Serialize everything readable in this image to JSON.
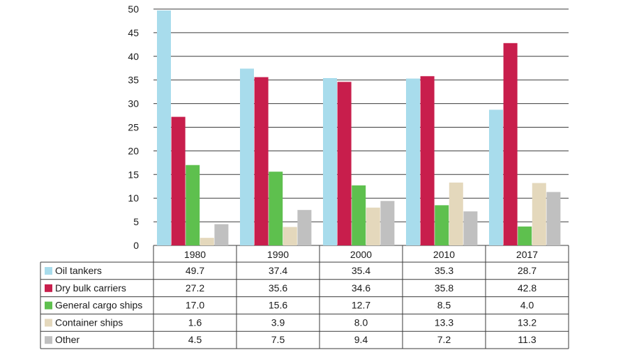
{
  "chart_data": {
    "type": "bar",
    "categories": [
      "1980",
      "1990",
      "2000",
      "2010",
      "2017"
    ],
    "series": [
      {
        "name": "Oil tankers",
        "color": "#a8dcec",
        "values": [
          "49.7",
          "37.4",
          "35.4",
          "35.3",
          "28.7"
        ]
      },
      {
        "name": "Dry bulk carriers",
        "color": "#c81e4c",
        "values": [
          "27.2",
          "35.6",
          "34.6",
          "35.8",
          "42.8"
        ]
      },
      {
        "name": "General cargo ships",
        "color": "#5ec04e",
        "values": [
          "17.0",
          "15.6",
          "12.7",
          "8.5",
          "4.0"
        ]
      },
      {
        "name": "Container ships",
        "color": "#e4d8bc",
        "values": [
          "1.6",
          "3.9",
          "8.0",
          "13.3",
          "13.2"
        ]
      },
      {
        "name": "Other",
        "color": "#c0c0c0",
        "values": [
          "4.5",
          "7.5",
          "9.4",
          "7.2",
          "11.3"
        ]
      }
    ],
    "ylim": [
      0,
      50
    ],
    "yticks": [
      "0",
      "5",
      "10",
      "15",
      "20",
      "25",
      "30",
      "35",
      "40",
      "45",
      "50"
    ],
    "grid": true,
    "legend": "data-table-left"
  }
}
